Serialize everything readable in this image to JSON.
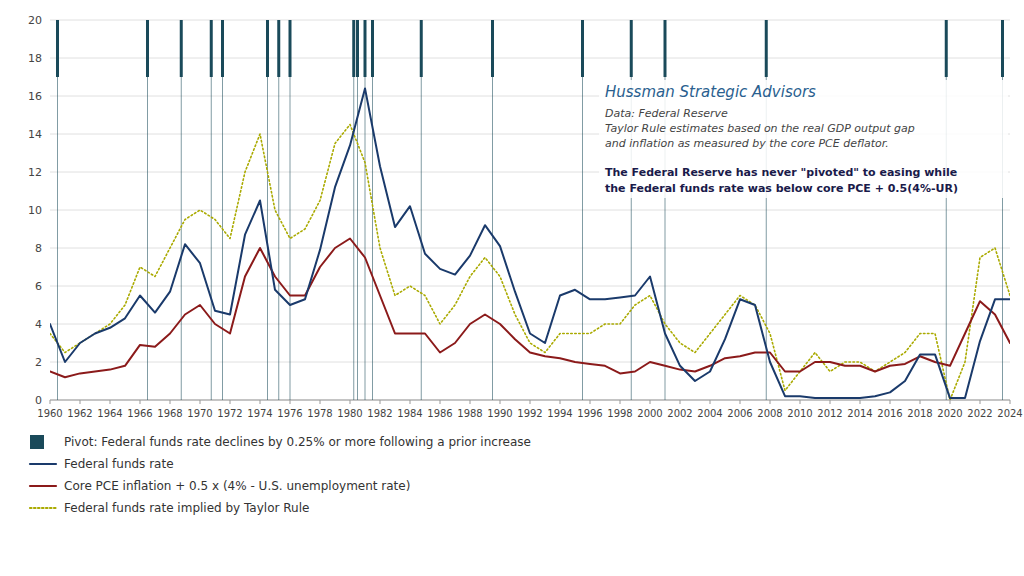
{
  "chart_data": {
    "type": "line",
    "title": "Hussman Strategic Advisors",
    "subtitle": [
      "Data: Federal Reserve",
      "Taylor Rule estimates based on the real GDP output gap",
      "and inflation as measured by the core PCE deflator."
    ],
    "annotation": [
      "The Federal Reserve has never \"pivoted\" to easing while",
      "the Federal funds rate was below core PCE + 0.5(4%-UR)"
    ],
    "xlim": [
      1960,
      2024
    ],
    "ylim": [
      0,
      20
    ],
    "xticks": [
      1960,
      1962,
      1964,
      1966,
      1968,
      1970,
      1972,
      1974,
      1976,
      1978,
      1980,
      1982,
      1984,
      1986,
      1988,
      1990,
      1992,
      1994,
      1996,
      1998,
      2000,
      2002,
      2004,
      2006,
      2008,
      2010,
      2012,
      2014,
      2016,
      2018,
      2020,
      2022,
      2024
    ],
    "yticks": [
      0,
      2,
      4,
      6,
      8,
      10,
      12,
      14,
      16,
      18,
      20
    ],
    "grid": true,
    "legend": "bottom",
    "pivots": {
      "name": "Pivot: Federal funds rate declines by 0.25% or more following a prior increase",
      "color": "#1a4a5a",
      "x": [
        1960.5,
        1966.5,
        1968.75,
        1970.75,
        1971.5,
        1974.5,
        1975.25,
        1976.0,
        1980.25,
        1980.5,
        1981.0,
        1981.5,
        1984.75,
        1989.5,
        1995.5,
        1998.75,
        2001.0,
        2007.75,
        2019.75,
        2023.5
      ]
    },
    "series": [
      {
        "name": "Federal funds rate",
        "color": "#1a3a6b",
        "line_style": "solid",
        "x": [
          1960,
          1961,
          1962,
          1963,
          1964,
          1965,
          1966,
          1967,
          1968,
          1969,
          1970,
          1971,
          1972,
          1973,
          1974,
          1975,
          1976,
          1977,
          1978,
          1979,
          1980,
          1981,
          1982,
          1983,
          1984,
          1985,
          1986,
          1987,
          1988,
          1989,
          1990,
          1991,
          1992,
          1993,
          1994,
          1995,
          1996,
          1997,
          1998,
          1999,
          2000,
          2001,
          2002,
          2003,
          2004,
          2005,
          2006,
          2007,
          2008,
          2009,
          2010,
          2011,
          2012,
          2013,
          2014,
          2015,
          2016,
          2017,
          2018,
          2019,
          2020,
          2021,
          2022,
          2023,
          2024
        ],
        "values": [
          4.0,
          2.0,
          3.0,
          3.5,
          3.8,
          4.3,
          5.5,
          4.6,
          5.7,
          8.2,
          7.2,
          4.7,
          4.5,
          8.7,
          10.5,
          5.8,
          5.0,
          5.3,
          7.9,
          11.2,
          13.4,
          16.4,
          12.3,
          9.1,
          10.2,
          7.7,
          6.9,
          6.6,
          7.6,
          9.2,
          8.1,
          5.7,
          3.5,
          3.0,
          5.5,
          5.8,
          5.3,
          5.3,
          5.4,
          5.5,
          6.5,
          3.5,
          1.8,
          1.0,
          1.5,
          3.2,
          5.3,
          5.0,
          2.0,
          0.2,
          0.2,
          0.1,
          0.1,
          0.1,
          0.1,
          0.2,
          0.4,
          1.0,
          2.4,
          2.4,
          0.1,
          0.1,
          3.1,
          5.3,
          5.3
        ]
      },
      {
        "name": "Core PCE inflation + 0.5 x (4% - U.S. unemployment rate)",
        "color": "#8b1a1a",
        "line_style": "solid",
        "x": [
          1960,
          1961,
          1962,
          1963,
          1964,
          1965,
          1966,
          1967,
          1968,
          1969,
          1970,
          1971,
          1972,
          1973,
          1974,
          1975,
          1976,
          1977,
          1978,
          1979,
          1980,
          1981,
          1982,
          1983,
          1984,
          1985,
          1986,
          1987,
          1988,
          1989,
          1990,
          1991,
          1992,
          1993,
          1994,
          1995,
          1996,
          1997,
          1998,
          1999,
          2000,
          2001,
          2002,
          2003,
          2004,
          2005,
          2006,
          2007,
          2008,
          2009,
          2010,
          2011,
          2012,
          2013,
          2014,
          2015,
          2016,
          2017,
          2018,
          2019,
          2020,
          2021,
          2022,
          2023,
          2024
        ],
        "values": [
          1.5,
          1.2,
          1.4,
          1.5,
          1.6,
          1.8,
          2.9,
          2.8,
          3.5,
          4.5,
          5.0,
          4.0,
          3.5,
          6.5,
          8.0,
          6.5,
          5.5,
          5.5,
          7.0,
          8.0,
          8.5,
          7.5,
          5.5,
          3.5,
          3.5,
          3.5,
          2.5,
          3.0,
          4.0,
          4.5,
          4.0,
          3.2,
          2.5,
          2.3,
          2.2,
          2.0,
          1.9,
          1.8,
          1.4,
          1.5,
          2.0,
          1.8,
          1.6,
          1.5,
          1.8,
          2.2,
          2.3,
          2.5,
          2.5,
          1.5,
          1.5,
          2.0,
          2.0,
          1.8,
          1.8,
          1.5,
          1.8,
          1.9,
          2.3,
          2.0,
          1.8,
          3.5,
          5.2,
          4.5,
          3.0
        ]
      },
      {
        "name": "Federal funds rate implied by Taylor Rule",
        "color": "#aaaa00",
        "line_style": "dotted",
        "x": [
          1960,
          1961,
          1962,
          1963,
          1964,
          1965,
          1966,
          1967,
          1968,
          1969,
          1970,
          1971,
          1972,
          1973,
          1974,
          1975,
          1976,
          1977,
          1978,
          1979,
          1980,
          1981,
          1982,
          1983,
          1984,
          1985,
          1986,
          1987,
          1988,
          1989,
          1990,
          1991,
          1992,
          1993,
          1994,
          1995,
          1996,
          1997,
          1998,
          1999,
          2000,
          2001,
          2002,
          2003,
          2004,
          2005,
          2006,
          2007,
          2008,
          2009,
          2010,
          2011,
          2012,
          2013,
          2014,
          2015,
          2016,
          2017,
          2018,
          2019,
          2020,
          2021,
          2022,
          2023,
          2024
        ],
        "values": [
          3.5,
          2.5,
          3.0,
          3.5,
          4.0,
          5.0,
          7.0,
          6.5,
          8.0,
          9.5,
          10.0,
          9.5,
          8.5,
          12.0,
          14.0,
          10.0,
          8.5,
          9.0,
          10.5,
          13.5,
          14.5,
          12.5,
          8.0,
          5.5,
          6.0,
          5.5,
          4.0,
          5.0,
          6.5,
          7.5,
          6.5,
          4.5,
          3.0,
          2.5,
          3.5,
          3.5,
          3.5,
          4.0,
          4.0,
          5.0,
          5.5,
          4.0,
          3.0,
          2.5,
          3.5,
          4.5,
          5.5,
          5.0,
          3.5,
          0.5,
          1.5,
          2.5,
          1.5,
          2.0,
          2.0,
          1.5,
          2.0,
          2.5,
          3.5,
          3.5,
          0.0,
          2.0,
          7.5,
          8.0,
          5.5
        ]
      }
    ]
  }
}
